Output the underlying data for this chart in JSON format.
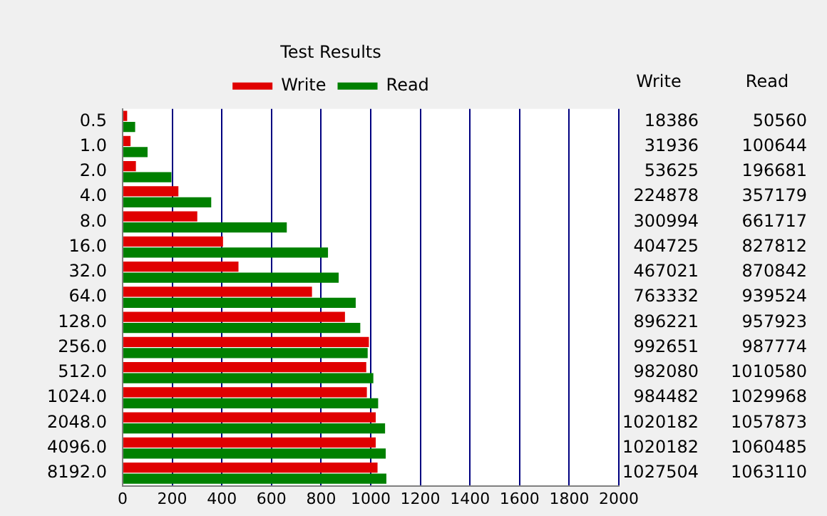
{
  "chart_data": {
    "type": "bar",
    "orientation": "horizontal",
    "title": "Test Results",
    "categories": [
      "0.5",
      "1.0",
      "2.0",
      "4.0",
      "8.0",
      "16.0",
      "32.0",
      "64.0",
      "128.0",
      "256.0",
      "512.0",
      "1024.0",
      "2048.0",
      "4096.0",
      "8192.0"
    ],
    "series": [
      {
        "name": "Write",
        "color": "#e00000",
        "values": [
          18.386,
          31.936,
          53.625,
          224.878,
          300.994,
          404.725,
          467.021,
          763.332,
          896.221,
          992.651,
          982.08,
          984.482,
          1020.182,
          1020.182,
          1027.504
        ]
      },
      {
        "name": "Read",
        "color": "#008000",
        "values": [
          50.56,
          100.644,
          196.681,
          357.179,
          661.717,
          827.812,
          870.842,
          939.524,
          957.923,
          987.774,
          1010.58,
          1029.968,
          1057.873,
          1060.485,
          1063.11
        ]
      }
    ],
    "xlim": [
      0,
      2000
    ],
    "xticks": [
      0,
      200,
      400,
      600,
      800,
      1000,
      1200,
      1400,
      1600,
      1800,
      2000
    ],
    "annotations": [
      "18386",
      "31936",
      "53625",
      "224878",
      "300994",
      "404725",
      "467021",
      "763332",
      "896221",
      "992651",
      "982080",
      "984482",
      "1020182",
      "1020182",
      "1027504",
      "50560",
      "100644",
      "196681",
      "357179",
      "661717",
      "827812",
      "870842",
      "939524",
      "957923",
      "987774",
      "1010580",
      "1029968",
      "1057873",
      "1060485",
      "1063110"
    ],
    "grid": "x",
    "legend": "top"
  }
}
